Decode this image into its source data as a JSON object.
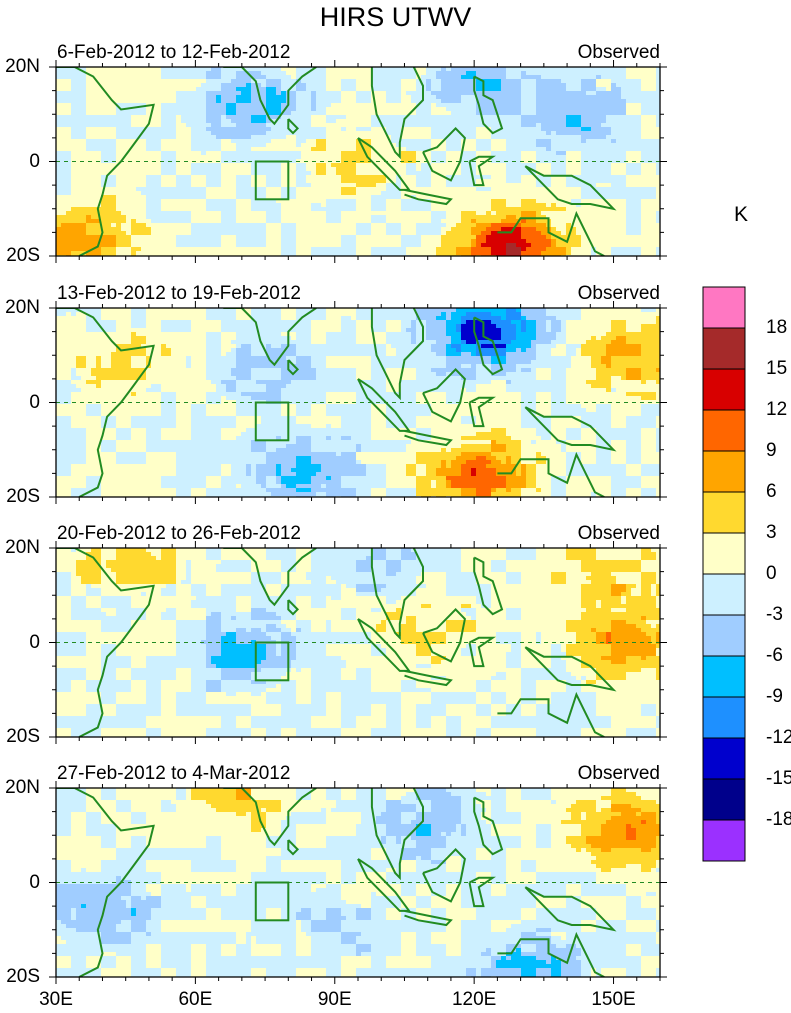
{
  "chart_data": {
    "type": "contour",
    "title": "HIRS UTWV",
    "xlabel": "",
    "ylabel": "",
    "xlim": [
      30,
      160
    ],
    "ylim": [
      -20,
      20
    ],
    "x_tick_labels": [
      "30E",
      "60E",
      "90E",
      "120E",
      "150E"
    ],
    "x_tick_values": [
      30,
      60,
      90,
      120,
      150
    ],
    "y_tick_labels": [
      "20N",
      "0",
      "20S"
    ],
    "y_tick_values": [
      20,
      0,
      -20
    ],
    "panels": [
      {
        "period": "6-Feb-2012 to 12-Feb-2012",
        "label": "Observed",
        "features": [
          {
            "lon": 72,
            "lat": 12,
            "value": -7
          },
          {
            "lon": 140,
            "lat": 10,
            "value": -6
          },
          {
            "lon": 128,
            "lat": -18,
            "value": 14
          },
          {
            "lon": 95,
            "lat": 0,
            "value": 4
          },
          {
            "lon": 35,
            "lat": -16,
            "value": 8
          },
          {
            "lon": 120,
            "lat": 17,
            "value": -5
          }
        ]
      },
      {
        "period": "13-Feb-2012 to 19-Feb-2012",
        "label": "Observed",
        "features": [
          {
            "lon": 123,
            "lat": 15,
            "value": -14
          },
          {
            "lon": 75,
            "lat": 7,
            "value": -4
          },
          {
            "lon": 121,
            "lat": -15,
            "value": 11
          },
          {
            "lon": 155,
            "lat": 10,
            "value": 7
          },
          {
            "lon": 83,
            "lat": -14,
            "value": -7
          },
          {
            "lon": 45,
            "lat": 9,
            "value": 4
          }
        ]
      },
      {
        "period": "20-Feb-2012 to 26-Feb-2012",
        "label": "Observed",
        "features": [
          {
            "lon": 70,
            "lat": -2,
            "value": -7
          },
          {
            "lon": 152,
            "lat": 0,
            "value": 8
          },
          {
            "lon": 46,
            "lat": 17,
            "value": 5
          },
          {
            "lon": 110,
            "lat": 2,
            "value": 4
          },
          {
            "lon": 98,
            "lat": 17,
            "value": -4
          },
          {
            "lon": 148,
            "lat": 14,
            "value": 5
          }
        ]
      },
      {
        "period": "27-Feb-2012 to 4-Mar-2012",
        "label": "Observed",
        "features": [
          {
            "lon": 152,
            "lat": 11,
            "value": 9
          },
          {
            "lon": 70,
            "lat": 19,
            "value": 5
          },
          {
            "lon": 110,
            "lat": 12,
            "value": -5
          },
          {
            "lon": 40,
            "lat": -6,
            "value": -6
          },
          {
            "lon": 132,
            "lat": -19,
            "value": -7
          },
          {
            "lon": 90,
            "lat": -9,
            "value": -3
          }
        ]
      }
    ],
    "equator_line": "dashed",
    "box_region": {
      "lon": [
        73,
        80
      ],
      "lat": [
        -8,
        0
      ]
    },
    "colorbar": {
      "unit": "K",
      "levels": [
        18,
        15,
        12,
        9,
        6,
        3,
        0,
        -3,
        -6,
        -9,
        -12,
        -15,
        -18
      ],
      "level_labels": [
        "18",
        "15",
        "12",
        "9",
        "6",
        "3",
        "0",
        "-3",
        "-6",
        "-9",
        "-12",
        "-15",
        "-18"
      ],
      "colors": [
        "#ff77c2",
        "#a52a2a",
        "#d80000",
        "#ff6600",
        "#ffa500",
        "#ffd92f",
        "#ffffc8",
        "#cdf0ff",
        "#a0cdff",
        "#00bfff",
        "#1e90ff",
        "#0000cd",
        "#00008b",
        "#9b30ff"
      ]
    },
    "coast_color": "#228b22"
  }
}
